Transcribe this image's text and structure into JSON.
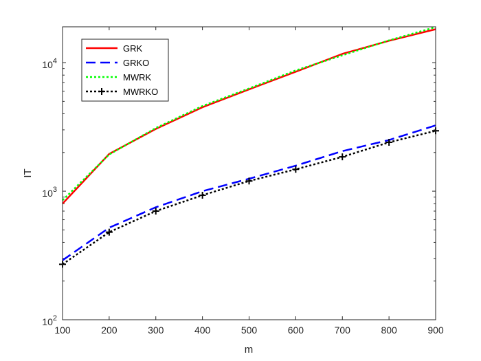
{
  "chart_data": {
    "type": "line",
    "title": "",
    "xlabel": "m",
    "ylabel": "IT",
    "xscale": "linear",
    "yscale": "log",
    "xlim": [
      100,
      900
    ],
    "ylim": [
      100,
      19000
    ],
    "grid": false,
    "legend_position": "top-left",
    "x_ticks": [
      100,
      200,
      300,
      400,
      500,
      600,
      700,
      800,
      900
    ],
    "x_tick_labels": [
      "100",
      "200",
      "300",
      "400",
      "500",
      "600",
      "700",
      "800",
      "900"
    ],
    "y_ticks": [
      {
        "value": 100,
        "base": "10",
        "exp": "2"
      },
      {
        "value": 1000,
        "base": "10",
        "exp": "3"
      },
      {
        "value": 10000,
        "base": "10",
        "exp": "4"
      }
    ],
    "x": [
      100,
      200,
      300,
      400,
      500,
      600,
      700,
      800,
      900
    ],
    "series": [
      {
        "name": "GRK",
        "color": "#ff0000",
        "style": "solid",
        "values": [
          800,
          1950,
          3050,
          4500,
          6200,
          8500,
          11700,
          14800,
          18200
        ]
      },
      {
        "name": "GRKO",
        "color": "#0000ff",
        "style": "dashed",
        "values": [
          290,
          520,
          750,
          1000,
          1250,
          1580,
          2050,
          2500,
          3250
        ]
      },
      {
        "name": "MWRK",
        "color": "#00ff00",
        "style": "dotted",
        "values": [
          850,
          1930,
          3100,
          4600,
          6300,
          8700,
          11400,
          14900,
          18900
        ]
      },
      {
        "name": "MWRKO",
        "color": "#000000",
        "style": "dotted-plus",
        "values": [
          270,
          480,
          700,
          930,
          1200,
          1480,
          1850,
          2400,
          2950
        ]
      }
    ]
  }
}
